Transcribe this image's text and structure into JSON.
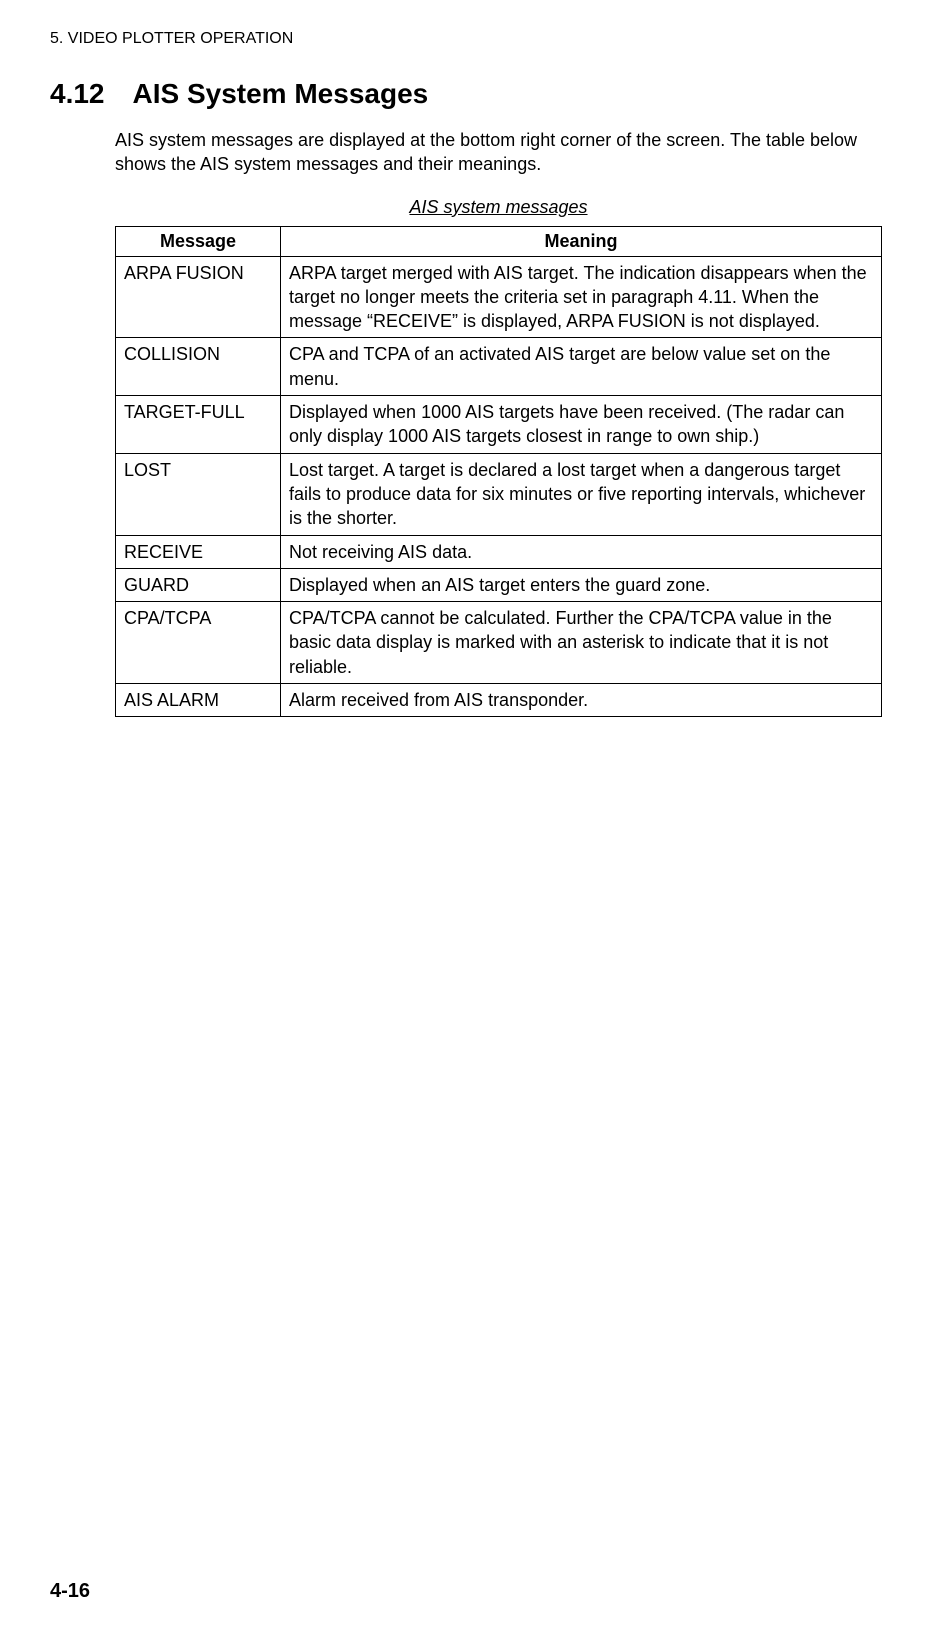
{
  "header": {
    "chapter_title": "5. VIDEO PLOTTER OPERATION"
  },
  "section": {
    "number": "4.12",
    "title": "AIS System Messages",
    "intro_paragraph": "AIS system messages are displayed at the bottom right corner of the screen. The table below shows the AIS system messages and their meanings."
  },
  "table": {
    "caption": "AIS system messages",
    "columns": [
      "Message",
      "Meaning"
    ],
    "rows": [
      [
        "ARPA FUSION",
        "ARPA target merged with AIS target. The indication disappears when the target no longer meets the criteria set in paragraph 4.11. When the message “RECEIVE” is displayed, ARPA FUSION is not displayed."
      ],
      [
        "COLLISION",
        "CPA and TCPA of an activated AIS target are below value set on the menu."
      ],
      [
        "TARGET-FULL",
        "Displayed when 1000 AIS targets have been received. (The radar can only display 1000 AIS targets closest in range to own ship.)"
      ],
      [
        "LOST",
        "Lost target. A target is declared a lost target when a dangerous target fails to produce data for six minutes or five reporting intervals, whichever is the shorter."
      ],
      [
        "RECEIVE",
        "Not receiving AIS data."
      ],
      [
        "GUARD",
        "Displayed when an AIS target enters the guard zone."
      ],
      [
        "CPA/TCPA",
        "CPA/TCPA cannot be calculated. Further the CPA/TCPA value in the basic data display is marked with an asterisk to indicate that it is not reliable."
      ],
      [
        "AIS ALARM",
        "Alarm received from AIS transponder."
      ]
    ]
  },
  "footer": {
    "page_number": "4-16"
  }
}
